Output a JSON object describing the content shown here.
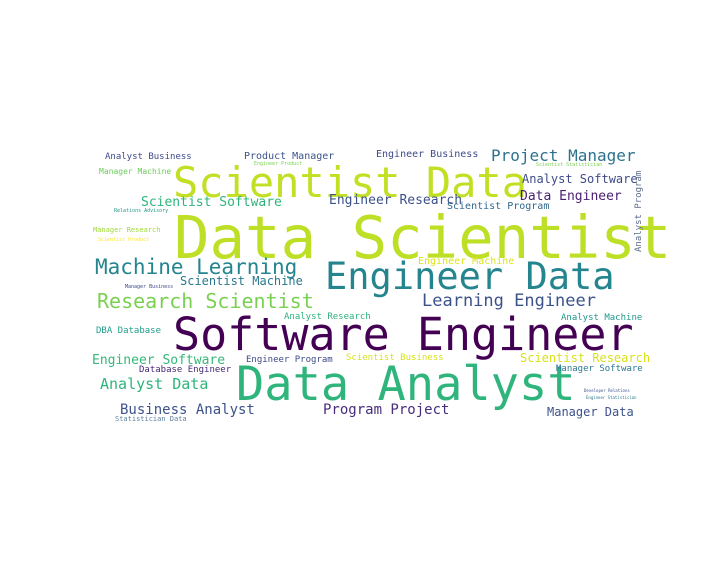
{
  "word_cloud": {
    "words": [
      {
        "text": "Data Scientist",
        "color": "#bddf26"
      },
      {
        "text": "Software Engineer",
        "color": "#440154"
      },
      {
        "text": "Data Analyst",
        "color": "#2fb47c"
      },
      {
        "text": "Scientist Data",
        "color": "#c2df23"
      },
      {
        "text": "Engineer Data",
        "color": "#25858e"
      },
      {
        "text": "Machine Learning",
        "color": "#25858e"
      },
      {
        "text": "Research Scientist",
        "color": "#7ad151"
      },
      {
        "text": "Learning Engineer",
        "color": "#3b528b"
      },
      {
        "text": "Project Manager",
        "color": "#2c728e"
      },
      {
        "text": "Scientist Software",
        "color": "#2fb47c"
      },
      {
        "text": "Engineer Research",
        "color": "#3b528b"
      },
      {
        "text": "Analyst Software",
        "color": "#3e4a89"
      },
      {
        "text": "Data Engineer",
        "color": "#481f70"
      },
      {
        "text": "Scientist Machine",
        "color": "#2a788e"
      },
      {
        "text": "Engineer Software",
        "color": "#35b779"
      },
      {
        "text": "Analyst Data",
        "color": "#2fb47c"
      },
      {
        "text": "Business Analyst",
        "color": "#3b528b"
      },
      {
        "text": "Program Project",
        "color": "#472d7b"
      },
      {
        "text": "Manager Data",
        "color": "#3b528b"
      },
      {
        "text": "Scientist Research",
        "color": "#d8e219"
      },
      {
        "text": "Product Manager",
        "color": "#3b528b"
      },
      {
        "text": "Engineer Business",
        "color": "#3e4a89"
      },
      {
        "text": "Analyst Business",
        "color": "#3e4a89"
      },
      {
        "text": "Scientist Program",
        "color": "#31688e"
      },
      {
        "text": "Analyst Program",
        "color": "#5d6d8d"
      },
      {
        "text": "Engineer Machine",
        "color": "#dde318"
      },
      {
        "text": "Analyst Research",
        "color": "#2db27d"
      },
      {
        "text": "Analyst Machine",
        "color": "#1f988b"
      },
      {
        "text": "Engineer Program",
        "color": "#3e4a89"
      },
      {
        "text": "Scientist Business",
        "color": "#d8e219"
      },
      {
        "text": "Database Engineer",
        "color": "#482878"
      },
      {
        "text": "Manager Software",
        "color": "#2a788e"
      },
      {
        "text": "DBA Database",
        "color": "#1f9e89"
      },
      {
        "text": "Manager Machine",
        "color": "#6ccd5a"
      },
      {
        "text": "Manager Research",
        "color": "#9fda3a"
      },
      {
        "text": "Statistician Data",
        "color": "#5e7fa0"
      },
      {
        "text": "Engineer Product",
        "color": "#7ad151"
      },
      {
        "text": "Relations Advisory",
        "color": "#1f988b"
      },
      {
        "text": "Scientist Product",
        "color": "#fde725"
      },
      {
        "text": "Manager Business",
        "color": "#3e4a89"
      },
      {
        "text": "Scientist Statistician",
        "color": "#7ad151"
      },
      {
        "text": "Developer Relations",
        "color": "#3b528b"
      },
      {
        "text": "Engineer Statistician",
        "color": "#2a788e"
      }
    ]
  }
}
